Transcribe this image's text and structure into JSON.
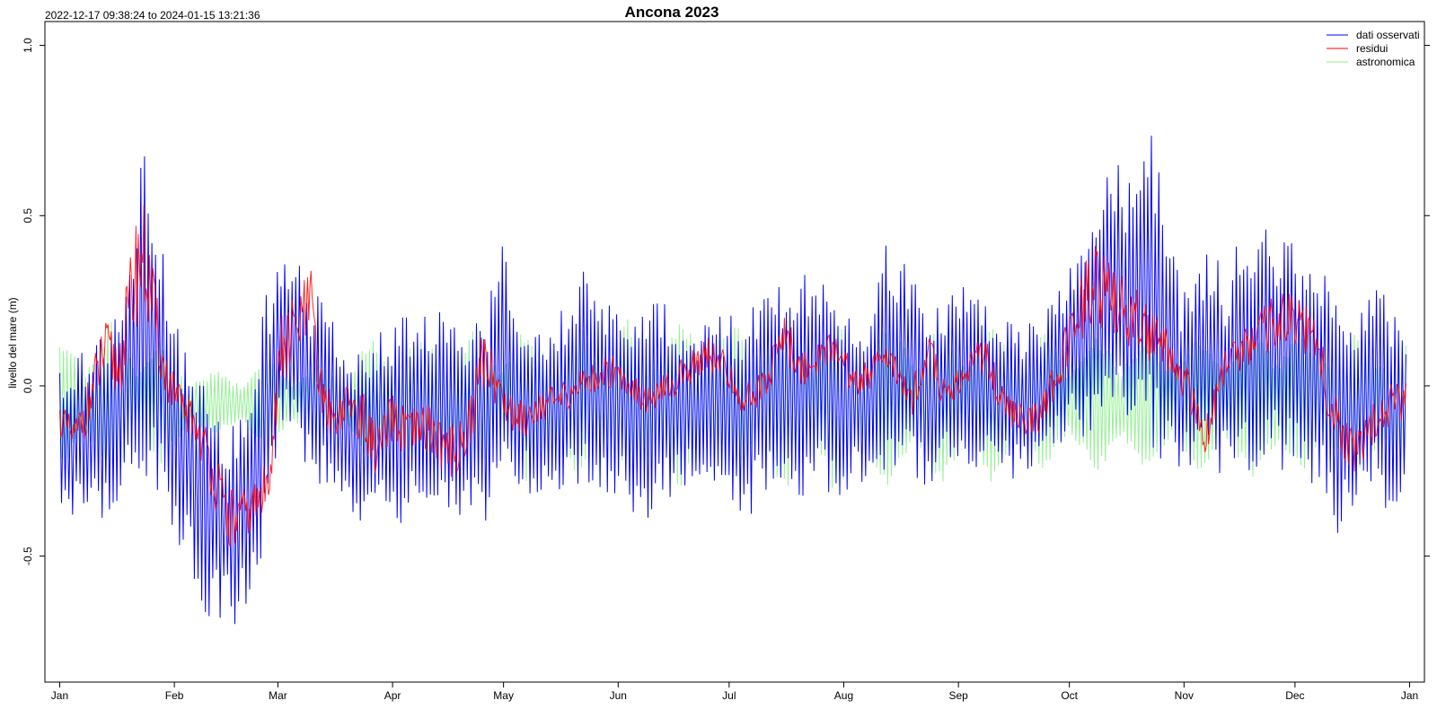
{
  "chart_data": {
    "type": "line",
    "title": "Ancona 2023",
    "date_range": "2022-12-17 09:38:24 to 2024-01-15 13:21:36",
    "xlabel": "",
    "ylabel": "livello del mare (m)",
    "x_ticks": [
      "Jan",
      "Feb",
      "Mar",
      "Apr",
      "May",
      "Jun",
      "Jul",
      "Aug",
      "Sep",
      "Oct",
      "Nov",
      "Dec",
      "Jan"
    ],
    "y_ticks": [
      "-0.5",
      "0.0",
      "0.5",
      "1.0"
    ],
    "y_tick_values": [
      -0.5,
      0.0,
      0.5,
      1.0
    ],
    "ylim": [
      -0.87,
      1.07
    ],
    "xlim_days": [
      -4,
      369
    ],
    "grid": false,
    "legend_position": "top-right",
    "series": [
      {
        "name": "dati osservati",
        "color": "#0000ff",
        "x_day": [
          0,
          7,
          15,
          20,
          22,
          26,
          30,
          35,
          40,
          45,
          48,
          50,
          53,
          56,
          58,
          60,
          65,
          68,
          70,
          75,
          82,
          88,
          92,
          98,
          105,
          110,
          115,
          120,
          122,
          127,
          133,
          138,
          143,
          150,
          160,
          170,
          175,
          180,
          185,
          190,
          196,
          200,
          205,
          210,
          215,
          220,
          223,
          228,
          235,
          242,
          248,
          250,
          255,
          260,
          265,
          270,
          275,
          280,
          285,
          290,
          295,
          300,
          303,
          308,
          310,
          315,
          320,
          325,
          330,
          335,
          340,
          345,
          350,
          355,
          357,
          360,
          364
        ],
        "low": [
          -0.35,
          -0.42,
          -0.38,
          -0.3,
          -0.25,
          -0.3,
          -0.45,
          -0.55,
          -0.68,
          -0.7,
          -0.72,
          -0.65,
          -0.6,
          -0.4,
          -0.3,
          -0.1,
          -0.18,
          -0.28,
          -0.3,
          -0.35,
          -0.42,
          -0.4,
          -0.45,
          -0.35,
          -0.4,
          -0.38,
          -0.4,
          -0.3,
          -0.3,
          -0.32,
          -0.35,
          -0.28,
          -0.3,
          -0.35,
          -0.4,
          -0.3,
          -0.35,
          -0.3,
          -0.4,
          -0.35,
          -0.32,
          -0.35,
          -0.3,
          -0.35,
          -0.3,
          -0.28,
          -0.3,
          -0.25,
          -0.3,
          -0.2,
          -0.25,
          -0.22,
          -0.25,
          -0.3,
          -0.25,
          -0.2,
          -0.15,
          -0.15,
          -0.1,
          -0.18,
          -0.2,
          -0.25,
          -0.3,
          -0.2,
          -0.25,
          -0.28,
          -0.3,
          -0.22,
          -0.25,
          -0.25,
          -0.3,
          -0.45,
          -0.35,
          -0.3,
          -0.35,
          -0.37,
          -0.35
        ],
        "high": [
          0.05,
          0.12,
          0.2,
          0.38,
          0.72,
          0.55,
          0.22,
          0.1,
          0.0,
          -0.1,
          -0.12,
          -0.05,
          0.1,
          0.3,
          0.35,
          0.38,
          0.42,
          0.15,
          0.44,
          0.15,
          0.1,
          0.18,
          0.22,
          0.2,
          0.25,
          0.2,
          0.22,
          0.44,
          0.3,
          0.2,
          0.22,
          0.25,
          0.38,
          0.25,
          0.28,
          0.18,
          0.2,
          0.22,
          0.18,
          0.33,
          0.28,
          0.3,
          0.39,
          0.25,
          0.2,
          0.22,
          0.42,
          0.38,
          0.22,
          0.28,
          0.34,
          0.25,
          0.2,
          0.2,
          0.22,
          0.3,
          0.45,
          0.62,
          0.68,
          0.58,
          0.78,
          0.45,
          0.3,
          0.35,
          0.45,
          0.32,
          0.5,
          0.52,
          0.45,
          0.42,
          0.35,
          0.38,
          0.2,
          0.32,
          0.3,
          0.22,
          0.15
        ]
      },
      {
        "name": "residui",
        "color": "#ff0000",
        "x_day": [
          0,
          4,
          8,
          12,
          16,
          20,
          22,
          25,
          28,
          32,
          36,
          40,
          44,
          47,
          50,
          53,
          56,
          58,
          60,
          63,
          66,
          68,
          70,
          74,
          78,
          82,
          86,
          90,
          95,
          100,
          105,
          110,
          115,
          120,
          125,
          130,
          135,
          140,
          150,
          160,
          170,
          175,
          180,
          185,
          190,
          196,
          200,
          205,
          210,
          215,
          220,
          225,
          230,
          235,
          240,
          245,
          250,
          255,
          260,
          265,
          270,
          275,
          280,
          285,
          290,
          295,
          300,
          305,
          310,
          315,
          320,
          325,
          330,
          335,
          340,
          345,
          350,
          355,
          360,
          364
        ],
        "center": [
          -0.1,
          -0.15,
          -0.05,
          0.1,
          0.05,
          0.3,
          0.4,
          0.25,
          0.05,
          -0.05,
          -0.1,
          -0.2,
          -0.35,
          -0.4,
          -0.38,
          -0.35,
          -0.3,
          -0.1,
          0.1,
          0.15,
          0.2,
          0.25,
          0.0,
          -0.1,
          -0.05,
          -0.1,
          -0.2,
          -0.1,
          -0.15,
          -0.12,
          -0.2,
          -0.15,
          0.1,
          -0.05,
          -0.1,
          -0.05,
          -0.05,
          0.0,
          0.05,
          -0.05,
          0.05,
          0.1,
          0.05,
          -0.05,
          0.0,
          0.15,
          0.05,
          0.08,
          0.12,
          0.0,
          0.05,
          0.08,
          -0.05,
          0.1,
          -0.05,
          0.05,
          0.1,
          -0.05,
          -0.1,
          -0.1,
          0.05,
          0.2,
          0.3,
          0.25,
          0.2,
          0.15,
          0.1,
          0.0,
          -0.15,
          0.05,
          0.1,
          0.15,
          0.2,
          0.2,
          0.1,
          -0.1,
          -0.2,
          -0.1,
          -0.05,
          -0.05
        ],
        "spread": [
          0.05,
          0.05,
          0.08,
          0.1,
          0.1,
          0.15,
          0.2,
          0.12,
          0.08,
          0.06,
          0.06,
          0.08,
          0.1,
          0.1,
          0.08,
          0.08,
          0.08,
          0.1,
          0.12,
          0.12,
          0.12,
          0.1,
          0.08,
          0.06,
          0.06,
          0.08,
          0.08,
          0.08,
          0.08,
          0.08,
          0.08,
          0.08,
          0.1,
          0.06,
          0.06,
          0.05,
          0.05,
          0.05,
          0.05,
          0.05,
          0.05,
          0.05,
          0.05,
          0.05,
          0.05,
          0.08,
          0.06,
          0.05,
          0.05,
          0.05,
          0.05,
          0.05,
          0.05,
          0.06,
          0.05,
          0.05,
          0.06,
          0.05,
          0.05,
          0.05,
          0.06,
          0.12,
          0.12,
          0.1,
          0.1,
          0.08,
          0.06,
          0.06,
          0.06,
          0.06,
          0.06,
          0.08,
          0.08,
          0.08,
          0.08,
          0.08,
          0.08,
          0.08,
          0.06,
          0.06
        ]
      },
      {
        "name": "astronomica",
        "color": "#90ee90",
        "x_day": [
          0,
          7,
          14,
          21,
          28,
          35,
          42,
          49,
          56,
          63,
          70,
          77,
          84,
          91,
          98,
          105,
          112,
          119,
          126,
          133,
          140,
          147,
          154,
          161,
          168,
          175,
          182,
          189,
          196,
          203,
          210,
          217,
          224,
          231,
          238,
          245,
          252,
          259,
          266,
          273,
          280,
          287,
          294,
          301,
          308,
          315,
          322,
          329,
          336,
          343,
          350,
          357,
          364
        ],
        "amplitude": [
          0.2,
          0.1,
          0.25,
          0.1,
          0.2,
          0.05,
          0.1,
          0.05,
          0.15,
          0.05,
          0.12,
          0.05,
          0.2,
          0.1,
          0.22,
          0.12,
          0.22,
          0.1,
          0.24,
          0.12,
          0.25,
          0.1,
          0.26,
          0.12,
          0.26,
          0.12,
          0.26,
          0.1,
          0.27,
          0.1,
          0.28,
          0.12,
          0.28,
          0.1,
          0.26,
          0.1,
          0.24,
          0.1,
          0.22,
          0.08,
          0.22,
          0.1,
          0.2,
          0.1,
          0.22,
          0.1,
          0.24,
          0.12,
          0.22,
          0.12,
          0.22,
          0.12,
          0.2
        ]
      }
    ]
  }
}
